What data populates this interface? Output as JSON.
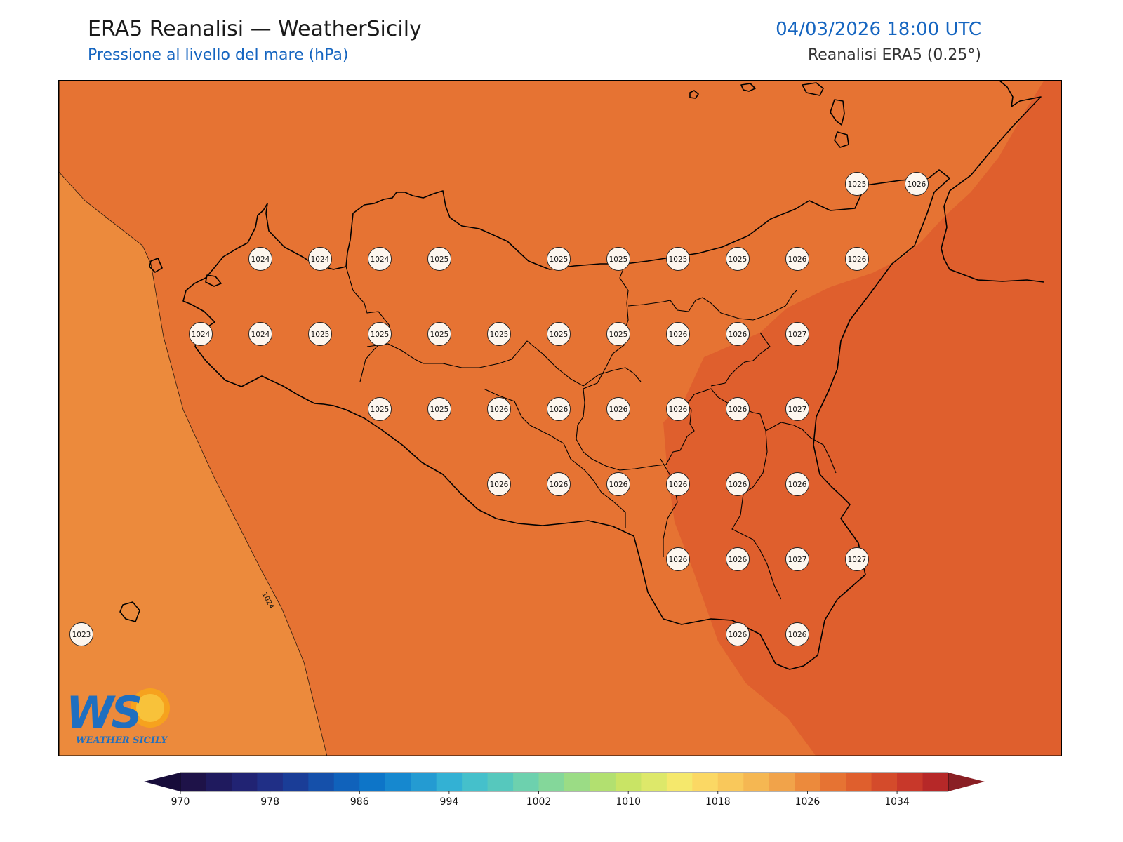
{
  "header": {
    "title": "ERA5 Reanalisi — WeatherSicily",
    "subtitle": "Pressione al livello del mare (hPa)",
    "datetime": "04/03/2026 18:00 UTC",
    "source": "Reanalisi ERA5 (0.25°)"
  },
  "isobar_label": "1024",
  "colors": {
    "field_1023": "#ec8a3c",
    "field_1025": "#e67333",
    "field_1027": "#df5f2d",
    "coastline": "#000000",
    "station_fill": "#fdf6ee"
  },
  "stations": [
    {
      "lon": 12.5,
      "lat": 38.25,
      "value": "1024"
    },
    {
      "lon": 12.75,
      "lat": 38.25,
      "value": "1024"
    },
    {
      "lon": 13.0,
      "lat": 38.25,
      "value": "1024"
    },
    {
      "lon": 13.25,
      "lat": 38.25,
      "value": "1025"
    },
    {
      "lon": 13.75,
      "lat": 38.25,
      "value": "1025"
    },
    {
      "lon": 14.0,
      "lat": 38.25,
      "value": "1025"
    },
    {
      "lon": 14.25,
      "lat": 38.25,
      "value": "1025"
    },
    {
      "lon": 14.5,
      "lat": 38.25,
      "value": "1025"
    },
    {
      "lon": 14.75,
      "lat": 38.25,
      "value": "1026"
    },
    {
      "lon": 15.0,
      "lat": 38.25,
      "value": "1026"
    },
    {
      "lon": 15.0,
      "lat": 38.5,
      "value": "1025"
    },
    {
      "lon": 15.25,
      "lat": 38.5,
      "value": "1026"
    },
    {
      "lon": 12.25,
      "lat": 38.0,
      "value": "1024"
    },
    {
      "lon": 12.5,
      "lat": 38.0,
      "value": "1024"
    },
    {
      "lon": 12.75,
      "lat": 38.0,
      "value": "1025"
    },
    {
      "lon": 13.0,
      "lat": 38.0,
      "value": "1025"
    },
    {
      "lon": 13.25,
      "lat": 38.0,
      "value": "1025"
    },
    {
      "lon": 13.5,
      "lat": 38.0,
      "value": "1025"
    },
    {
      "lon": 13.75,
      "lat": 38.0,
      "value": "1025"
    },
    {
      "lon": 14.0,
      "lat": 38.0,
      "value": "1025"
    },
    {
      "lon": 14.25,
      "lat": 38.0,
      "value": "1026"
    },
    {
      "lon": 14.5,
      "lat": 38.0,
      "value": "1026"
    },
    {
      "lon": 14.75,
      "lat": 38.0,
      "value": "1027"
    },
    {
      "lon": 13.0,
      "lat": 37.75,
      "value": "1025"
    },
    {
      "lon": 13.25,
      "lat": 37.75,
      "value": "1025"
    },
    {
      "lon": 13.5,
      "lat": 37.75,
      "value": "1026"
    },
    {
      "lon": 13.75,
      "lat": 37.75,
      "value": "1026"
    },
    {
      "lon": 14.0,
      "lat": 37.75,
      "value": "1026"
    },
    {
      "lon": 14.25,
      "lat": 37.75,
      "value": "1026"
    },
    {
      "lon": 14.5,
      "lat": 37.75,
      "value": "1026"
    },
    {
      "lon": 14.75,
      "lat": 37.75,
      "value": "1027"
    },
    {
      "lon": 13.5,
      "lat": 37.5,
      "value": "1026"
    },
    {
      "lon": 13.75,
      "lat": 37.5,
      "value": "1026"
    },
    {
      "lon": 14.0,
      "lat": 37.5,
      "value": "1026"
    },
    {
      "lon": 14.25,
      "lat": 37.5,
      "value": "1026"
    },
    {
      "lon": 14.5,
      "lat": 37.5,
      "value": "1026"
    },
    {
      "lon": 14.75,
      "lat": 37.5,
      "value": "1026"
    },
    {
      "lon": 14.25,
      "lat": 37.25,
      "value": "1026"
    },
    {
      "lon": 14.5,
      "lat": 37.25,
      "value": "1026"
    },
    {
      "lon": 14.75,
      "lat": 37.25,
      "value": "1027"
    },
    {
      "lon": 15.0,
      "lat": 37.25,
      "value": "1027"
    },
    {
      "lon": 14.5,
      "lat": 37.0,
      "value": "1026"
    },
    {
      "lon": 14.75,
      "lat": 37.0,
      "value": "1026"
    },
    {
      "lon": 11.75,
      "lat": 37.0,
      "value": "1023"
    }
  ],
  "colorbar": {
    "tick_labels": [
      "970",
      "978",
      "986",
      "994",
      "1002",
      "1010",
      "1018",
      "1026",
      "1034"
    ],
    "colors": [
      "#1e1248",
      "#1f1a5e",
      "#212373",
      "#202f86",
      "#1a3d97",
      "#1550aa",
      "#1062bb",
      "#0d75c8",
      "#1688cf",
      "#249bd2",
      "#33b1d4",
      "#45c0cb",
      "#56c8bd",
      "#6dd1ae",
      "#84d79a",
      "#9bdc85",
      "#b2e070",
      "#c9e465",
      "#dde86a",
      "#f5e86c",
      "#fbd864",
      "#f9c85b",
      "#f5b752",
      "#f1a34a",
      "#ec8a3c",
      "#e67333",
      "#df5f2d",
      "#d44b2b",
      "#c8382a",
      "#b62828"
    ],
    "under_color": "#170c3a",
    "over_color": "#8a1f24"
  },
  "logo": {
    "letters": "WS",
    "caption": "WEATHER SICILY"
  }
}
